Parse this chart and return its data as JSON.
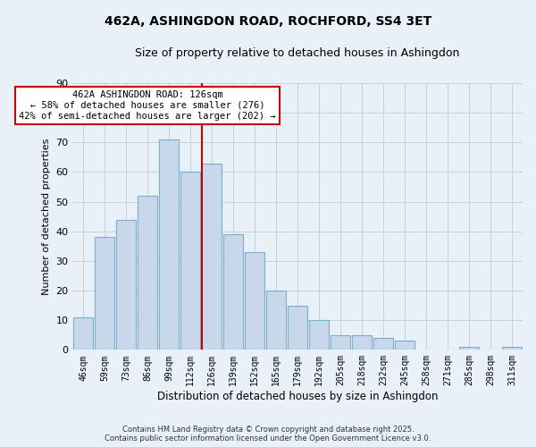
{
  "title": "462A, ASHINGDON ROAD, ROCHFORD, SS4 3ET",
  "subtitle": "Size of property relative to detached houses in Ashingdon",
  "xlabel": "Distribution of detached houses by size in Ashingdon",
  "ylabel": "Number of detached properties",
  "bins": [
    "46sqm",
    "59sqm",
    "73sqm",
    "86sqm",
    "99sqm",
    "112sqm",
    "126sqm",
    "139sqm",
    "152sqm",
    "165sqm",
    "179sqm",
    "192sqm",
    "205sqm",
    "218sqm",
    "232sqm",
    "245sqm",
    "258sqm",
    "271sqm",
    "285sqm",
    "298sqm",
    "311sqm"
  ],
  "values": [
    11,
    38,
    44,
    52,
    71,
    60,
    63,
    39,
    33,
    20,
    15,
    10,
    5,
    5,
    4,
    3,
    0,
    0,
    1,
    0,
    1
  ],
  "bar_color": "#c8d8ea",
  "bar_edge_color": "#7aaece",
  "vline_color": "#cc0000",
  "annotation_title": "462A ASHINGDON ROAD: 126sqm",
  "annotation_line1": "← 58% of detached houses are smaller (276)",
  "annotation_line2": "42% of semi-detached houses are larger (202) →",
  "annotation_box_color": "#ffffff",
  "annotation_box_edge": "#cc0000",
  "ylim": [
    0,
    90
  ],
  "yticks": [
    0,
    10,
    20,
    30,
    40,
    50,
    60,
    70,
    80,
    90
  ],
  "grid_color": "#c8d0d8",
  "background_color": "#e8f0f8",
  "footer_line1": "Contains HM Land Registry data © Crown copyright and database right 2025.",
  "footer_line2": "Contains public sector information licensed under the Open Government Licence v3.0."
}
